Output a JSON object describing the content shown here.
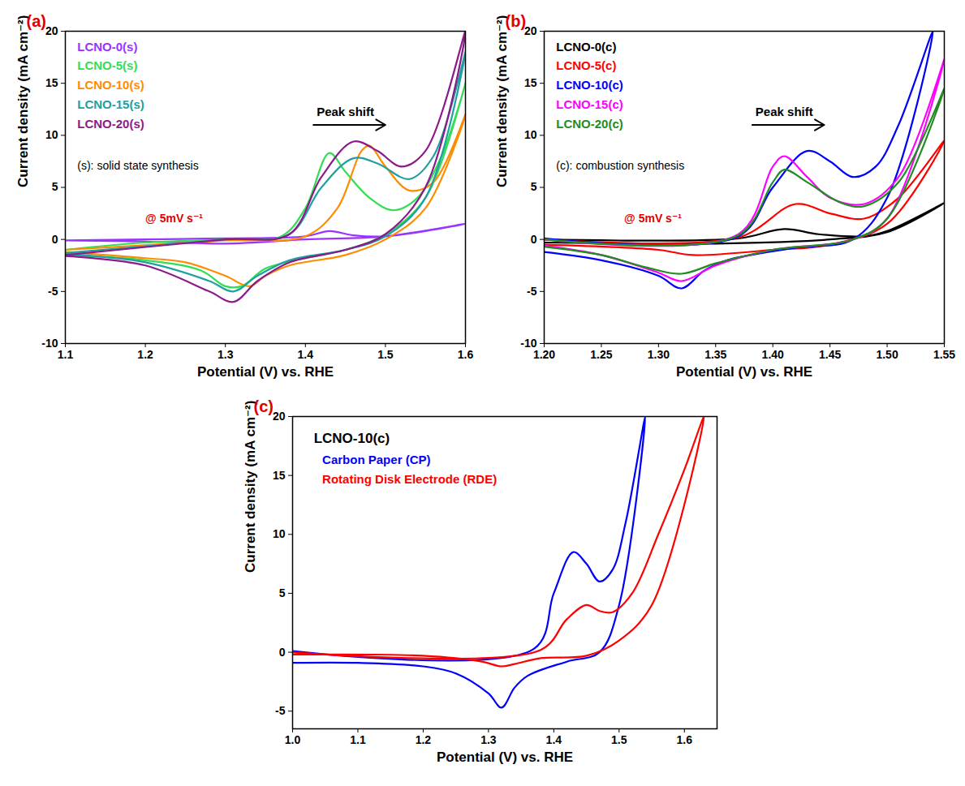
{
  "chart_data": [
    {
      "type": "line",
      "title": "(a)",
      "x_label": "Potential (V) vs. RHE",
      "y_label": "Current density (mA cm⁻²)",
      "annotations": [
        "Peak shift",
        "(s): solid state synthesis",
        "@ 5mV s⁻¹"
      ],
      "xlim": [
        1.1,
        1.6
      ],
      "xticks": [
        1.1,
        1.2,
        1.3,
        1.4,
        1.5,
        1.6
      ],
      "ylim": [
        -10,
        20
      ],
      "yticks": [
        -10,
        -5,
        0,
        5,
        10,
        15,
        20
      ],
      "grid": false,
      "legend": "upper left",
      "series": [
        {
          "name": "LCNO-0(s)",
          "color": "#9933ff",
          "x": [
            1.1,
            1.2,
            1.3,
            1.4,
            1.43,
            1.46,
            1.5,
            1.55,
            1.6,
            1.5,
            1.4,
            1.3,
            1.2,
            1.1
          ],
          "values": [
            -0.1,
            0,
            0.1,
            0.3,
            0.8,
            0.4,
            0.3,
            0.8,
            1.5,
            0.3,
            0,
            -0.4,
            -0.2,
            -0.1
          ]
        },
        {
          "name": "LCNO-5(s)",
          "color": "#33dd55",
          "x": [
            1.1,
            1.2,
            1.3,
            1.37,
            1.4,
            1.43,
            1.45,
            1.48,
            1.51,
            1.54,
            1.57,
            1.6,
            1.55,
            1.5,
            1.45,
            1.4,
            1.35,
            1.32,
            1.3,
            1.27,
            1.2,
            1.1
          ],
          "values": [
            -1.0,
            -0.3,
            0,
            0.3,
            3,
            8.3,
            6.5,
            4,
            2.8,
            4,
            8,
            15,
            4,
            0.5,
            -1.0,
            -1.8,
            -2.8,
            -4.5,
            -4.5,
            -3,
            -2,
            -1.5
          ]
        },
        {
          "name": "LCNO-10(s)",
          "color": "#ff8c00",
          "x": [
            1.1,
            1.3,
            1.4,
            1.44,
            1.47,
            1.48,
            1.5,
            1.53,
            1.56,
            1.6,
            1.55,
            1.5,
            1.45,
            1.38,
            1.35,
            1.33,
            1.3,
            1.25,
            1.2,
            1.1
          ],
          "values": [
            -1.0,
            -0.1,
            0.3,
            3,
            8.5,
            9.0,
            7,
            4.7,
            5.5,
            12,
            3,
            0,
            -1.5,
            -2.5,
            -3.5,
            -4.5,
            -3.5,
            -2.2,
            -1.8,
            -1.2
          ]
        },
        {
          "name": "LCNO-15(s)",
          "color": "#20a0a0",
          "x": [
            1.1,
            1.3,
            1.38,
            1.42,
            1.46,
            1.49,
            1.53,
            1.56,
            1.6,
            1.55,
            1.5,
            1.45,
            1.38,
            1.34,
            1.31,
            1.28,
            1.2,
            1.1
          ],
          "values": [
            -1.3,
            0,
            0.5,
            5,
            7.8,
            7.3,
            5.8,
            8,
            18,
            4,
            0.3,
            -1,
            -2,
            -3.5,
            -5,
            -4,
            -2.2,
            -1.4
          ]
        },
        {
          "name": "LCNO-20(s)",
          "color": "#8b1a8b",
          "x": [
            1.1,
            1.3,
            1.38,
            1.42,
            1.46,
            1.49,
            1.52,
            1.55,
            1.6,
            1.55,
            1.5,
            1.45,
            1.38,
            1.34,
            1.31,
            1.28,
            1.2,
            1.1
          ],
          "values": [
            -1.5,
            0,
            0.5,
            6,
            9.4,
            8.5,
            7,
            8.5,
            20,
            5,
            0.5,
            -1,
            -2.2,
            -4,
            -6,
            -5,
            -2.5,
            -1.6
          ]
        }
      ]
    },
    {
      "type": "line",
      "title": "(b)",
      "x_label": "Potential (V) vs. RHE",
      "y_label": "Current density (mA cm⁻²)",
      "annotations": [
        "Peak shift",
        "(c): combustion synthesis",
        "@ 5mV s⁻¹"
      ],
      "xlim": [
        1.2,
        1.55
      ],
      "xticks": [
        {
          "value": 1.2,
          "label": "1.20"
        },
        1.25,
        {
          "value": 1.3,
          "label": "1.30"
        },
        1.35,
        {
          "value": 1.4,
          "label": "1.40"
        },
        1.45,
        {
          "value": 1.5,
          "label": "1.50"
        },
        1.55
      ],
      "ylim": [
        -10,
        20
      ],
      "yticks": [
        -10,
        -5,
        0,
        5,
        10,
        15,
        20
      ],
      "grid": false,
      "legend": "upper left",
      "series": [
        {
          "name": "LCNO-0(c)",
          "color": "#000000",
          "x": [
            1.2,
            1.37,
            1.41,
            1.44,
            1.48,
            1.5,
            1.55,
            1.5,
            1.45,
            1.35,
            1.3,
            1.2
          ],
          "values": [
            0,
            0.1,
            1.0,
            0.5,
            0.3,
            0.8,
            3.5,
            0.7,
            0,
            -0.4,
            -0.4,
            -0.3
          ]
        },
        {
          "name": "LCNO-5(c)",
          "color": "#ff0000",
          "x": [
            1.2,
            1.37,
            1.42,
            1.45,
            1.48,
            1.51,
            1.55,
            1.5,
            1.45,
            1.4,
            1.33,
            1.3,
            1.2
          ],
          "values": [
            0,
            0.2,
            3.4,
            2.5,
            2.0,
            4,
            9.5,
            1.5,
            -0.5,
            -1,
            -1.5,
            -1.0,
            -0.5
          ]
        },
        {
          "name": "LCNO-10(c)",
          "color": "#0000ff",
          "x": [
            1.2,
            1.37,
            1.4,
            1.43,
            1.45,
            1.47,
            1.49,
            1.51,
            1.54,
            1.5,
            1.47,
            1.42,
            1.36,
            1.34,
            1.32,
            1.3,
            1.25,
            1.2
          ],
          "values": [
            0.1,
            0.3,
            5,
            8.5,
            7.5,
            6.0,
            7,
            11,
            20,
            4,
            0,
            -0.8,
            -2,
            -3,
            -4.7,
            -3.5,
            -2,
            -1.2
          ]
        },
        {
          "name": "LCNO-15(c)",
          "color": "#ff00ff",
          "x": [
            1.2,
            1.37,
            1.4,
            1.41,
            1.43,
            1.45,
            1.48,
            1.51,
            1.55,
            1.5,
            1.47,
            1.4,
            1.35,
            1.32,
            1.3,
            1.25,
            1.2
          ],
          "values": [
            0,
            0.5,
            7,
            8,
            6,
            4,
            3.4,
            6,
            17.3,
            2,
            0,
            -1,
            -2.5,
            -4,
            -3.2,
            -1.5,
            -0.6
          ]
        },
        {
          "name": "LCNO-20(c)",
          "color": "#228b22",
          "x": [
            1.2,
            1.37,
            1.4,
            1.41,
            1.43,
            1.46,
            1.48,
            1.51,
            1.55,
            1.5,
            1.47,
            1.4,
            1.35,
            1.32,
            1.29,
            1.25,
            1.2
          ],
          "values": [
            0,
            0.4,
            5.5,
            6.7,
            5.5,
            3.5,
            3.2,
            5.5,
            14.5,
            2,
            0,
            -1,
            -2.3,
            -3.3,
            -2.7,
            -1.5,
            -0.7
          ]
        }
      ]
    },
    {
      "type": "line",
      "title": "(c)",
      "subtitle": "LCNO-10(c)",
      "x_label": "Potential (V) vs. RHE",
      "y_label": "Current density (mA cm⁻²)",
      "xlim": [
        1.0,
        1.65
      ],
      "xticks": [
        {
          "value": 1.0,
          "label": "1.0"
        },
        1.1,
        1.2,
        1.3,
        1.4,
        1.5,
        1.6
      ],
      "ylim": [
        -6.5,
        20
      ],
      "yticks": [
        -5,
        0,
        5,
        10,
        15,
        20
      ],
      "grid": false,
      "legend": "upper left",
      "series": [
        {
          "name": "Carbon Paper (CP)",
          "color": "#0000ff",
          "x": [
            1.0,
            1.37,
            1.4,
            1.43,
            1.45,
            1.47,
            1.49,
            1.51,
            1.54,
            1.5,
            1.47,
            1.42,
            1.36,
            1.34,
            1.32,
            1.3,
            1.25,
            1.2,
            1.1,
            1.0
          ],
          "values": [
            0.1,
            0.3,
            5,
            8.5,
            7.5,
            6.0,
            7,
            11,
            20,
            4,
            0,
            -0.8,
            -2,
            -3,
            -4.7,
            -3.5,
            -1.8,
            -1.2,
            -0.9,
            -0.9
          ]
        },
        {
          "name": "Rotating Disk Electrode (RDE)",
          "color": "#ff0000",
          "x": [
            1.0,
            1.38,
            1.42,
            1.45,
            1.47,
            1.49,
            1.52,
            1.56,
            1.6,
            1.63,
            1.55,
            1.5,
            1.45,
            1.38,
            1.34,
            1.32,
            1.29,
            1.2,
            1.0
          ],
          "values": [
            0,
            0.2,
            2.8,
            4.0,
            3.5,
            3.4,
            5,
            10,
            15.5,
            20,
            4,
            1,
            -0.3,
            -0.5,
            -1,
            -1.2,
            -0.8,
            -0.3,
            -0.2
          ]
        }
      ]
    }
  ]
}
